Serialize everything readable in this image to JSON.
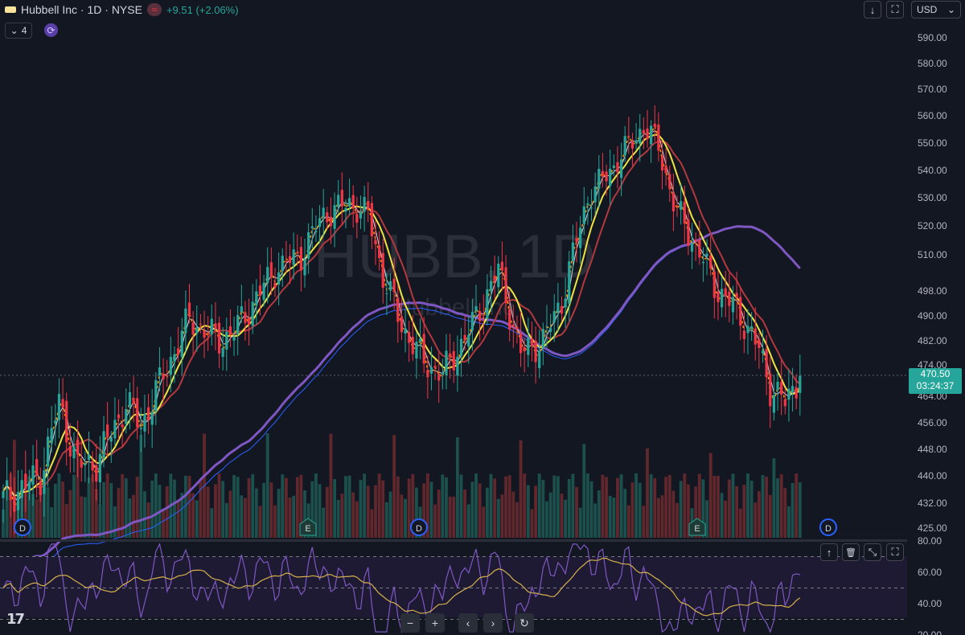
{
  "header": {
    "title": "Hubbell Inc · 1D · NYSE",
    "approx_icon": "≈",
    "change": "+9.51 (+2.06%)",
    "indicators_count": "4",
    "indicators_chevron": "⌄",
    "sync_icon": "⟳"
  },
  "toolbar": {
    "download_icon": "↓",
    "fullscreen_icon": "⛶",
    "currency": "USD",
    "currency_chevron": "⌄"
  },
  "watermark": {
    "symbol": "HUBB, 1D",
    "name": "Hubbell Inc"
  },
  "price_label": {
    "price": "470.50",
    "countdown": "03:24:37"
  },
  "pane_toolbar": {
    "up_icon": "↑",
    "delete_icon": "🗑",
    "collapse_icon": "⤡",
    "maximize_icon": "⛶"
  },
  "nav": {
    "zoom_out": "−",
    "zoom_in": "+",
    "left": "‹",
    "right": "›",
    "reset": "↻"
  },
  "logo": "17",
  "colors": {
    "background": "#131722",
    "up": "#26a69a",
    "down": "#f23645",
    "ma_white": "#d1d4dc",
    "ma_yellow": "#f0e442",
    "ma_red": "#b2383e",
    "ma_purple": "#7e57c2",
    "ma_blue": "#2962ff",
    "rsi": "#7e57c2",
    "rsi_ma": "#d4b04c"
  },
  "chart_data": {
    "type": "candlestick",
    "y_axis": {
      "ticks": [
        "590.00",
        "580.00",
        "570.00",
        "560.00",
        "550.00",
        "540.00",
        "530.00",
        "520.00",
        "510.00",
        "498.00",
        "490.00",
        "482.00",
        "474.00",
        "464.00",
        "456.00",
        "448.00",
        "440.00",
        "432.00",
        "425.00"
      ]
    },
    "rsi_axis": {
      "ticks": [
        "80.00",
        "60.00",
        "40.00",
        "20.00"
      ],
      "levels": [
        70,
        50,
        30
      ]
    },
    "last_price": 470.5,
    "markers": [
      {
        "label": "D",
        "at": "dividend"
      },
      {
        "label": "E",
        "at": "earnings"
      },
      {
        "label": "D",
        "at": "dividend"
      },
      {
        "label": "E",
        "at": "earnings"
      },
      {
        "label": "D",
        "at": "dividend"
      }
    ],
    "anchors_close": [
      [
        0,
        433
      ],
      [
        10,
        440
      ],
      [
        15,
        462
      ],
      [
        20,
        443
      ],
      [
        25,
        444
      ],
      [
        33,
        462
      ],
      [
        37,
        455
      ],
      [
        50,
        489
      ],
      [
        58,
        482
      ],
      [
        62,
        485
      ],
      [
        73,
        505
      ],
      [
        80,
        510
      ],
      [
        86,
        524
      ],
      [
        93,
        528
      ],
      [
        98,
        524
      ],
      [
        102,
        503
      ],
      [
        107,
        487
      ],
      [
        113,
        475
      ],
      [
        118,
        471
      ],
      [
        126,
        487
      ],
      [
        133,
        505
      ],
      [
        139,
        478
      ],
      [
        145,
        482
      ],
      [
        150,
        495
      ],
      [
        157,
        530
      ],
      [
        163,
        540
      ],
      [
        168,
        549
      ],
      [
        172,
        556
      ],
      [
        176,
        549
      ],
      [
        180,
        528
      ],
      [
        184,
        518
      ],
      [
        188,
        508
      ],
      [
        192,
        498
      ],
      [
        197,
        492
      ],
      [
        200,
        486
      ],
      [
        203,
        479
      ],
      [
        206,
        467
      ],
      [
        210,
        462
      ],
      [
        214,
        470.5
      ]
    ]
  }
}
